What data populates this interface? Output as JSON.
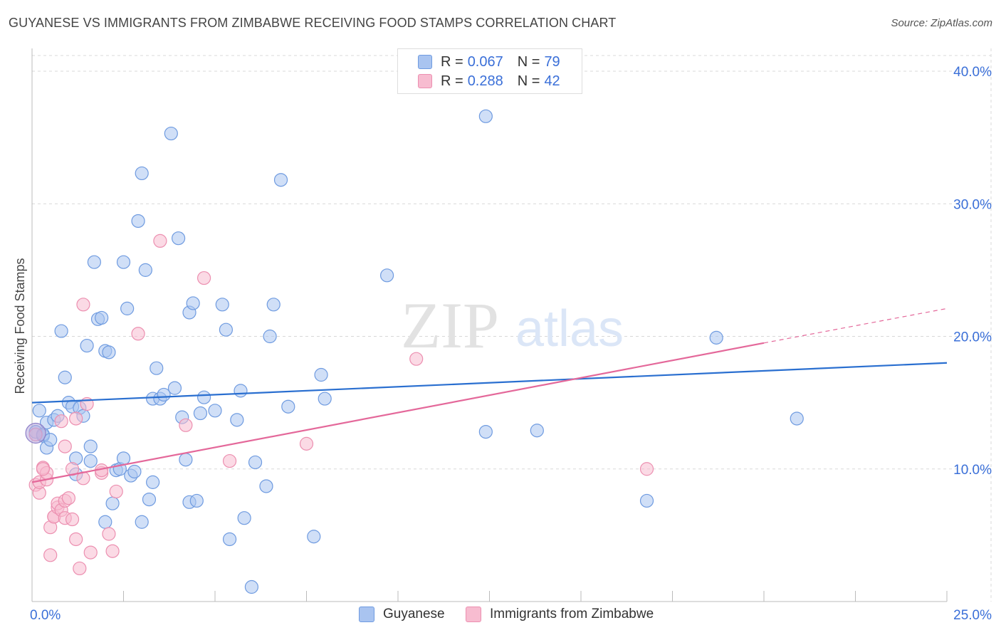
{
  "title": "GUYANESE VS IMMIGRANTS FROM ZIMBABWE RECEIVING FOOD STAMPS CORRELATION CHART",
  "source": "Source: ZipAtlas.com",
  "watermark": {
    "zip": "ZIP",
    "atlas": "atlas"
  },
  "legend": {
    "rows": [
      {
        "r_label": "R =",
        "r_value": "0.067",
        "n_label": "N =",
        "n_value": "79",
        "color": "#a9c4f0",
        "border": "#6f9be0"
      },
      {
        "r_label": "R =",
        "r_value": "0.288",
        "n_label": "N =",
        "n_value": "42",
        "color": "#f7bcd0",
        "border": "#ec8fb0"
      }
    ]
  },
  "bottom_legend": [
    {
      "label": "Guyanese",
      "color": "#a9c4f0",
      "border": "#6f9be0"
    },
    {
      "label": "Immigrants from Zimbabwe",
      "color": "#f7bcd0",
      "border": "#ec8fb0"
    }
  ],
  "chart_data": {
    "type": "scatter",
    "title": "GUYANESE VS IMMIGRANTS FROM ZIMBABWE RECEIVING FOOD STAMPS CORRELATION CHART",
    "xlabel": "",
    "ylabel": "Receiving Food Stamps",
    "xlim": [
      0,
      25
    ],
    "ylim": [
      0,
      40
    ],
    "x_tick_labels": [
      "0.0%",
      "25.0%"
    ],
    "y_ticks": [
      10,
      20,
      30,
      40
    ],
    "y_tick_labels": [
      "10.0%",
      "20.0%",
      "30.0%",
      "40.0%"
    ],
    "grid": true,
    "series": [
      {
        "name": "Guyanese",
        "color": "#a9c4f0",
        "edge": "#6f9be0",
        "trend": {
          "x": [
            0,
            25
          ],
          "y": [
            15.0,
            18.0
          ],
          "color": "#2a6fd0"
        },
        "points": [
          [
            0.1,
            12.8
          ],
          [
            0.2,
            14.4
          ],
          [
            0.3,
            12.5
          ],
          [
            0.3,
            12.6
          ],
          [
            0.4,
            13.5
          ],
          [
            0.4,
            11.6
          ],
          [
            0.5,
            12.2
          ],
          [
            0.6,
            13.7
          ],
          [
            0.7,
            14.0
          ],
          [
            0.8,
            20.4
          ],
          [
            0.9,
            16.9
          ],
          [
            1.0,
            15.0
          ],
          [
            1.1,
            14.7
          ],
          [
            1.2,
            9.6
          ],
          [
            1.2,
            10.8
          ],
          [
            1.3,
            14.6
          ],
          [
            1.4,
            14.0
          ],
          [
            1.5,
            19.3
          ],
          [
            1.6,
            10.6
          ],
          [
            1.6,
            11.7
          ],
          [
            1.7,
            25.6
          ],
          [
            1.8,
            21.3
          ],
          [
            1.9,
            21.4
          ],
          [
            2.0,
            18.9
          ],
          [
            2.0,
            6.0
          ],
          [
            2.1,
            18.8
          ],
          [
            2.2,
            7.4
          ],
          [
            2.3,
            9.9
          ],
          [
            2.4,
            10.0
          ],
          [
            2.5,
            10.8
          ],
          [
            2.5,
            25.6
          ],
          [
            2.6,
            22.1
          ],
          [
            2.7,
            9.5
          ],
          [
            2.8,
            9.8
          ],
          [
            2.9,
            28.7
          ],
          [
            3.0,
            32.3
          ],
          [
            3.0,
            6.0
          ],
          [
            3.1,
            25.0
          ],
          [
            3.2,
            7.7
          ],
          [
            3.3,
            15.3
          ],
          [
            3.3,
            9.0
          ],
          [
            3.4,
            17.6
          ],
          [
            3.5,
            15.3
          ],
          [
            3.6,
            15.6
          ],
          [
            3.8,
            35.3
          ],
          [
            3.9,
            16.1
          ],
          [
            4.0,
            27.4
          ],
          [
            4.1,
            13.9
          ],
          [
            4.2,
            10.7
          ],
          [
            4.3,
            21.8
          ],
          [
            4.3,
            7.5
          ],
          [
            4.4,
            22.5
          ],
          [
            4.5,
            7.6
          ],
          [
            4.6,
            14.2
          ],
          [
            4.7,
            15.4
          ],
          [
            5.0,
            14.4
          ],
          [
            5.2,
            22.4
          ],
          [
            5.3,
            20.5
          ],
          [
            5.4,
            4.7
          ],
          [
            5.6,
            13.7
          ],
          [
            5.7,
            15.9
          ],
          [
            5.8,
            6.3
          ],
          [
            6.0,
            1.1
          ],
          [
            6.1,
            10.5
          ],
          [
            6.4,
            8.7
          ],
          [
            6.5,
            20.0
          ],
          [
            6.6,
            22.4
          ],
          [
            6.8,
            31.8
          ],
          [
            7.0,
            14.7
          ],
          [
            7.7,
            4.9
          ],
          [
            7.9,
            17.1
          ],
          [
            8.0,
            15.3
          ],
          [
            9.7,
            24.6
          ],
          [
            12.4,
            36.6
          ],
          [
            12.4,
            12.8
          ],
          [
            13.8,
            12.9
          ],
          [
            16.8,
            7.6
          ],
          [
            18.7,
            19.9
          ],
          [
            20.9,
            13.8
          ]
        ]
      },
      {
        "name": "Immigrants from Zimbabwe",
        "color": "#f7bcd0",
        "edge": "#ec8fb0",
        "trend": {
          "x": [
            0,
            20.0
          ],
          "y": [
            9.0,
            19.5
          ],
          "dashed_to": [
            25,
            22.1
          ],
          "color": "#e4689a"
        },
        "points": [
          [
            0.1,
            12.6
          ],
          [
            0.1,
            8.8
          ],
          [
            0.2,
            8.2
          ],
          [
            0.2,
            9.0
          ],
          [
            0.3,
            10.1
          ],
          [
            0.4,
            9.2
          ],
          [
            0.4,
            9.7
          ],
          [
            0.5,
            5.6
          ],
          [
            0.5,
            3.5
          ],
          [
            0.6,
            6.4
          ],
          [
            0.6,
            6.4
          ],
          [
            0.7,
            7.1
          ],
          [
            0.7,
            7.4
          ],
          [
            0.8,
            6.9
          ],
          [
            0.8,
            13.6
          ],
          [
            0.9,
            11.7
          ],
          [
            0.9,
            6.3
          ],
          [
            0.9,
            7.6
          ],
          [
            1.0,
            7.8
          ],
          [
            1.1,
            10.0
          ],
          [
            1.1,
            6.2
          ],
          [
            1.2,
            13.8
          ],
          [
            1.2,
            4.7
          ],
          [
            1.3,
            2.5
          ],
          [
            1.4,
            9.3
          ],
          [
            1.4,
            22.4
          ],
          [
            1.5,
            14.9
          ],
          [
            1.6,
            3.7
          ],
          [
            1.9,
            9.7
          ],
          [
            1.9,
            9.9
          ],
          [
            2.1,
            5.1
          ],
          [
            2.2,
            3.8
          ],
          [
            2.3,
            8.3
          ],
          [
            2.9,
            20.2
          ],
          [
            3.5,
            27.2
          ],
          [
            4.2,
            13.3
          ],
          [
            4.7,
            24.4
          ],
          [
            5.4,
            10.6
          ],
          [
            7.5,
            11.9
          ],
          [
            10.5,
            18.3
          ],
          [
            16.8,
            10.0
          ],
          [
            0.3,
            10.0
          ]
        ]
      }
    ]
  }
}
